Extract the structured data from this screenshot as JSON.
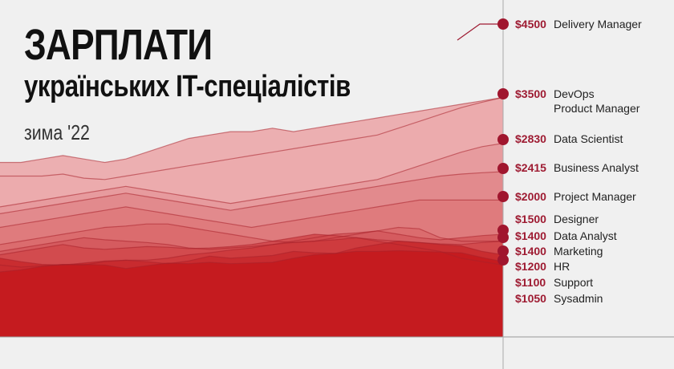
{
  "header": {
    "title": "ЗАРПЛАТИ",
    "subtitle": "українських IT-спеціалістів",
    "season": "зима '22"
  },
  "colors": {
    "background": "#f0f0f0",
    "accent": "#9e1b32",
    "band_dark": "#c41a1e",
    "band_light": "#efb9bb"
  },
  "chart_data": {
    "type": "area",
    "xlabel": "",
    "ylabel": "",
    "grid": false,
    "legend": "right",
    "ylim": [
      0,
      4800
    ],
    "note": "Overlapping area chart; the last point of each series equals the labelled value.",
    "series": [
      {
        "name": "Sysadmin",
        "label": "$1050",
        "value": 1050,
        "values": [
          1050,
          1020,
          1040,
          1060,
          1050,
          1100,
          1120,
          1120,
          1150,
          1200,
          1230,
          1270,
          1300,
          1350,
          1380,
          1400,
          1420,
          1450,
          1400,
          1350,
          1300,
          1250,
          1150,
          1100,
          1050
        ]
      },
      {
        "name": "Support",
        "label": "$1100",
        "value": 1100,
        "values": [
          950,
          980,
          1030,
          1060,
          1060,
          1050,
          1000,
          1040,
          1080,
          1070,
          1090,
          1070,
          1080,
          1090,
          1150,
          1200,
          1220,
          1250,
          1250,
          1260,
          1250,
          1240,
          1230,
          1160,
          1100
        ]
      },
      {
        "name": "HR",
        "label": "$1200",
        "value": 1200,
        "values": [
          1150,
          1100,
          1060,
          1050,
          1080,
          1110,
          1120,
          1100,
          1070,
          1110,
          1180,
          1150,
          1170,
          1190,
          1250,
          1230,
          1220,
          1300,
          1350,
          1400,
          1380,
          1350,
          1330,
          1250,
          1200
        ]
      },
      {
        "name": "Marketing",
        "label": "$1400",
        "value": 1400,
        "values": [
          1200,
          1250,
          1300,
          1350,
          1300,
          1280,
          1300,
          1320,
          1310,
          1290,
          1300,
          1320,
          1350,
          1400,
          1450,
          1500,
          1480,
          1450,
          1420,
          1400,
          1380,
          1360,
          1350,
          1380,
          1400
        ]
      },
      {
        "name": "Data Analyst",
        "label": "$1400",
        "value": 1400,
        "values": [
          1350,
          1400,
          1450,
          1500,
          1550,
          1600,
          1620,
          1650,
          1650,
          1600,
          1550,
          1500,
          1450,
          1400,
          1380,
          1400,
          1450,
          1500,
          1550,
          1600,
          1580,
          1450,
          1400,
          1400,
          1400
        ]
      },
      {
        "name": "Designer",
        "label": "$1500",
        "value": 1500,
        "values": [
          1250,
          1300,
          1350,
          1400,
          1450,
          1420,
          1400,
          1380,
          1350,
          1300,
          1280,
          1300,
          1320,
          1350,
          1400,
          1450,
          1500,
          1520,
          1550,
          1500,
          1450,
          1420,
          1450,
          1480,
          1500
        ]
      },
      {
        "name": "Project Manager",
        "label": "$2000",
        "value": 2000,
        "values": [
          1600,
          1650,
          1700,
          1750,
          1800,
          1850,
          1900,
          1850,
          1800,
          1750,
          1700,
          1650,
          1600,
          1650,
          1700,
          1750,
          1800,
          1850,
          1900,
          1950,
          2000,
          2000,
          2000,
          2000,
          2000
        ]
      },
      {
        "name": "Business Analyst",
        "label": "$2415",
        "value": 2415,
        "values": [
          1800,
          1850,
          1900,
          1950,
          2000,
          2050,
          2100,
          2050,
          2000,
          1950,
          1900,
          1850,
          1900,
          1950,
          2000,
          2050,
          2100,
          2150,
          2200,
          2250,
          2300,
          2350,
          2380,
          2400,
          2415
        ]
      },
      {
        "name": "Data Scientist",
        "label": "$2830",
        "value": 2830,
        "values": [
          1900,
          1950,
          2000,
          2050,
          2100,
          2150,
          2200,
          2150,
          2100,
          2050,
          2000,
          1950,
          2000,
          2050,
          2100,
          2150,
          2200,
          2250,
          2300,
          2400,
          2500,
          2600,
          2700,
          2780,
          2830
        ]
      },
      {
        "name": "DevOps",
        "label": "$3500",
        "value": 3500,
        "values": [
          2350,
          2350,
          2350,
          2380,
          2320,
          2300,
          2350,
          2400,
          2450,
          2500,
          2550,
          2600,
          2650,
          2700,
          2750,
          2800,
          2850,
          2900,
          2950,
          3050,
          3150,
          3250,
          3350,
          3430,
          3500
        ]
      },
      {
        "name": "Product Manager",
        "label": "",
        "value": 3500,
        "values": [
          2550,
          2550,
          2600,
          2650,
          2600,
          2550,
          2600,
          2700,
          2800,
          2900,
          2950,
          3000,
          3000,
          3050,
          3000,
          3050,
          3100,
          3150,
          3200,
          3250,
          3300,
          3350,
          3400,
          3450,
          3500
        ]
      },
      {
        "name": "Delivery Manager",
        "label": "$4500",
        "value": 4500,
        "values": []
      }
    ]
  }
}
